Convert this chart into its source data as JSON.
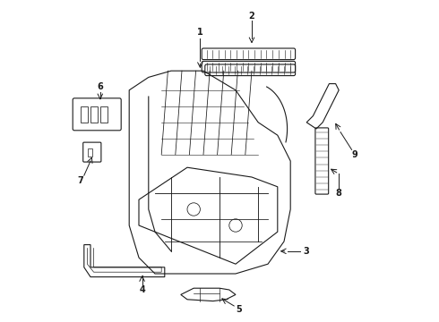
{
  "title": "",
  "background_color": "#ffffff",
  "line_color": "#1a1a1a",
  "label_color": "#000000",
  "figsize": [
    4.9,
    3.6
  ],
  "dpi": 100
}
